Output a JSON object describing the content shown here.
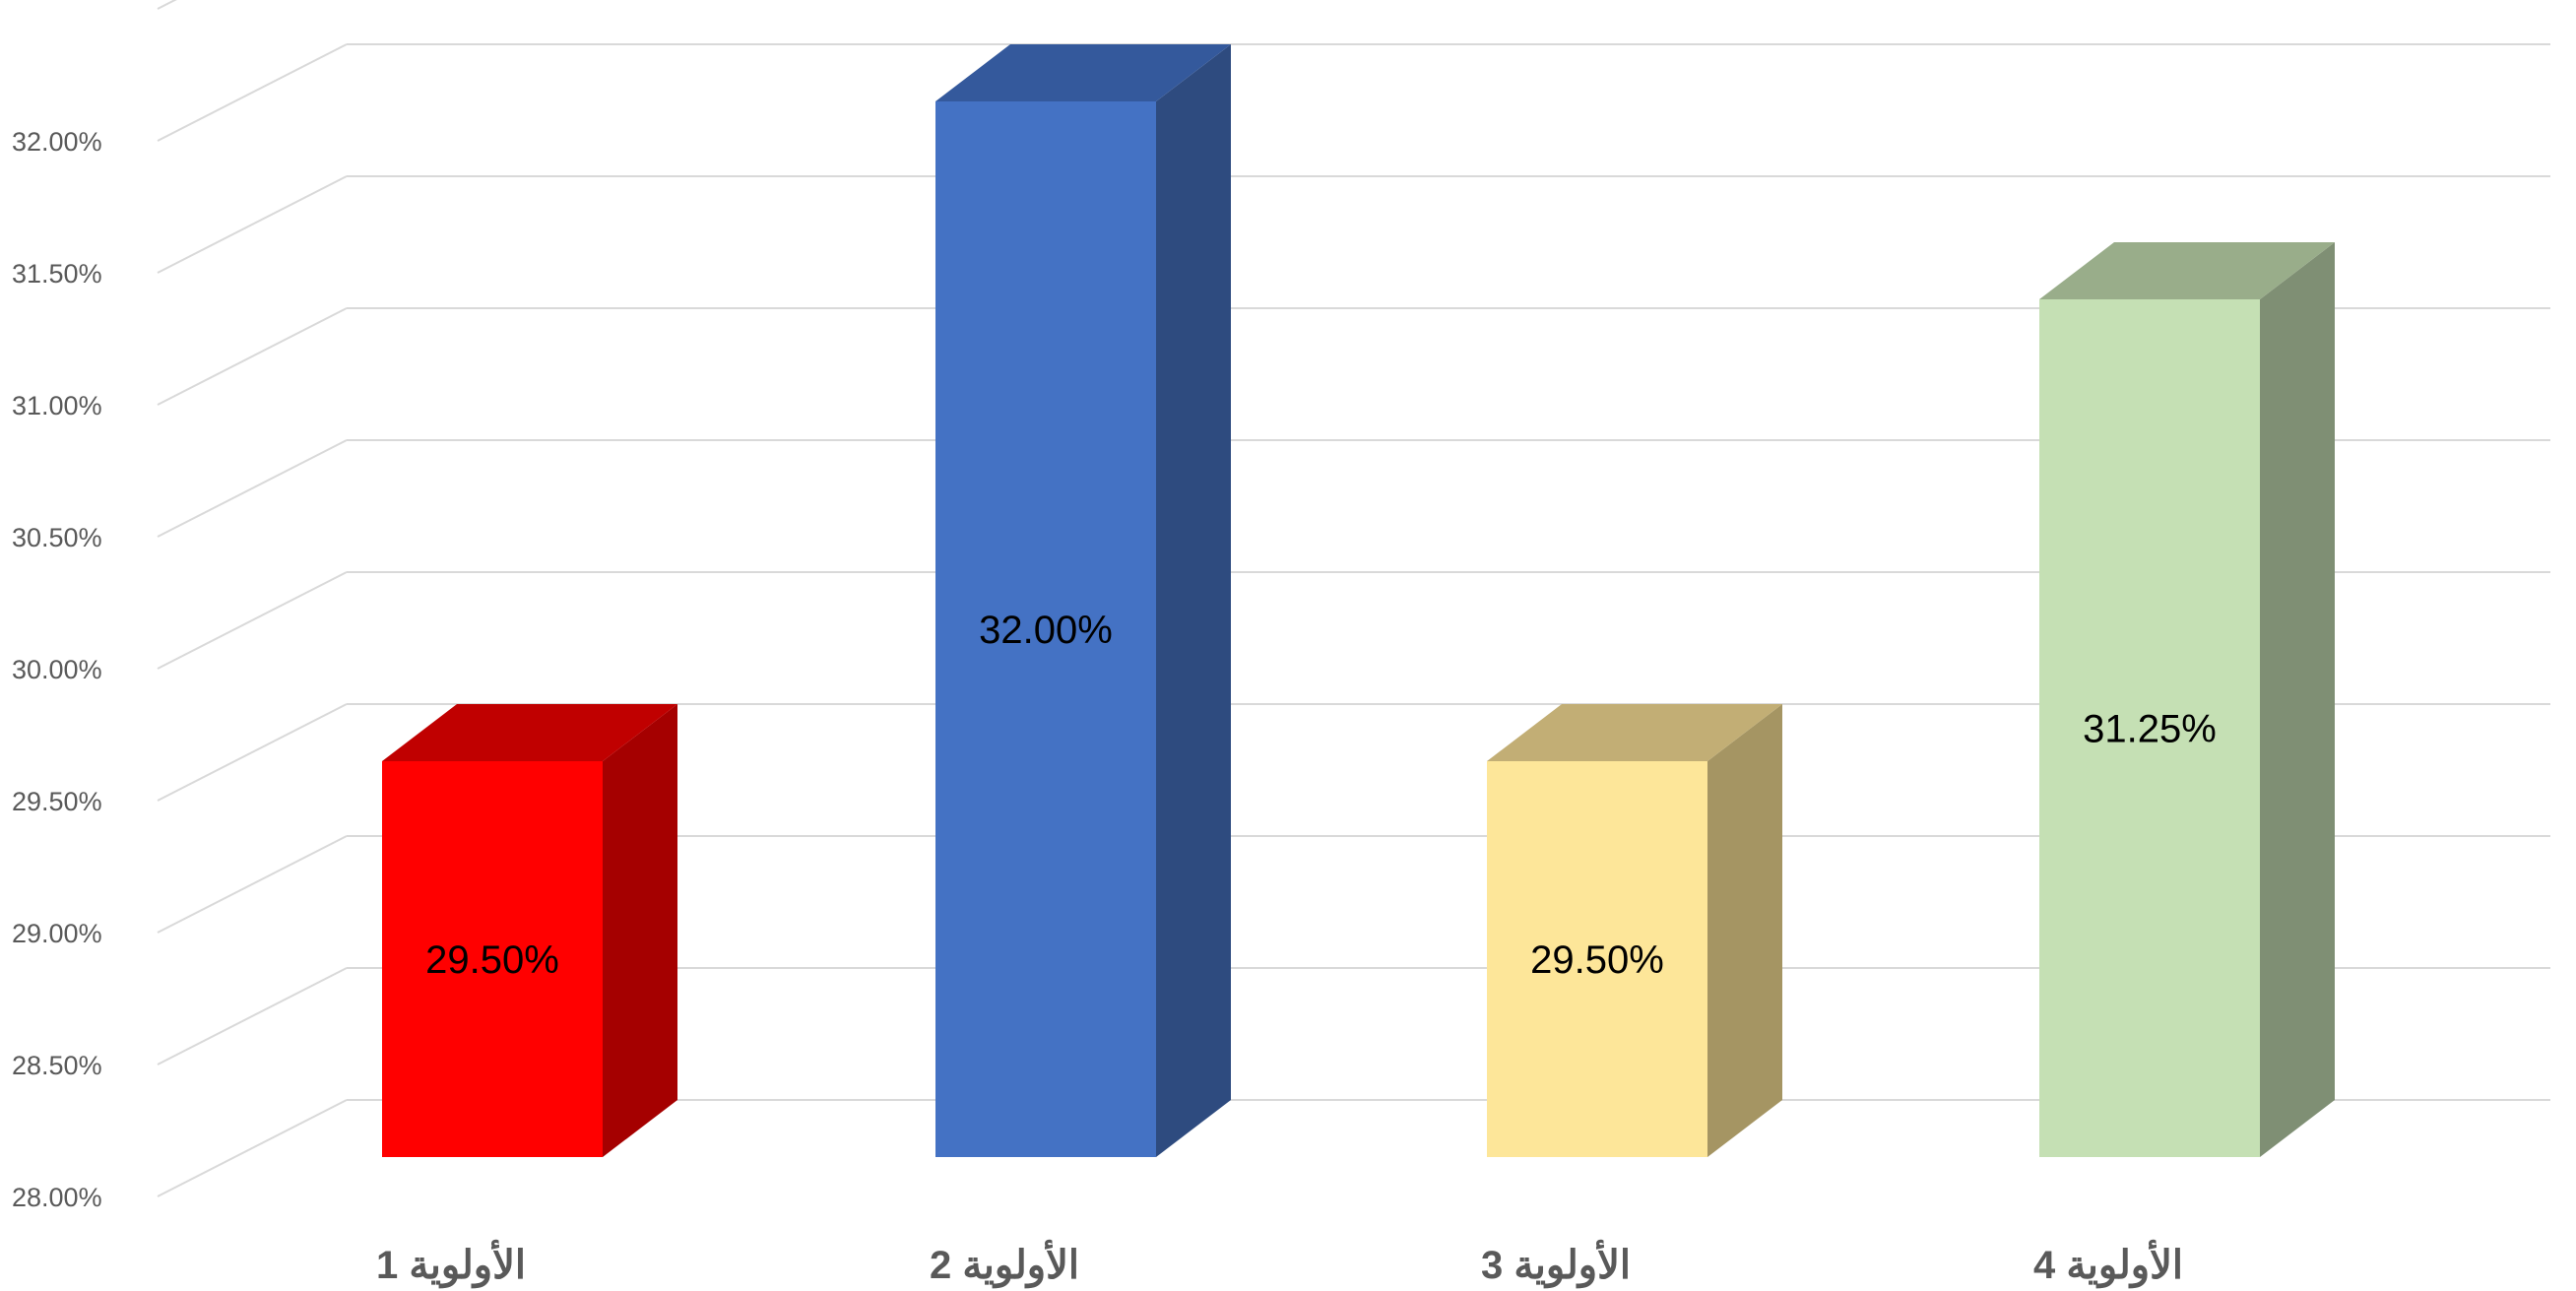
{
  "chart_data": {
    "type": "bar",
    "style": "3d-column",
    "categories": [
      "الأولوية 1",
      "الأولوية 2",
      "الأولوية 3",
      "الأولوية 4"
    ],
    "values": [
      29.5,
      32.0,
      29.5,
      31.25
    ],
    "data_labels": [
      "29.50%",
      "32.00%",
      "29.50%",
      "31.25%"
    ],
    "colors": [
      {
        "front": "#ff0000",
        "side": "#a50000",
        "top": "#c00000"
      },
      {
        "front": "#4472c4",
        "side": "#2e4b7f",
        "top": "#34599c"
      },
      {
        "front": "#fde699",
        "side": "#a59563",
        "top": "#c2ae75"
      },
      {
        "front": "#c5e0b4",
        "side": "#7f8f74",
        "top": "#99ad8a"
      }
    ],
    "ylim": [
      28,
      32.25
    ],
    "yticks": [
      28,
      28.5,
      29,
      29.5,
      30,
      30.5,
      31,
      31.5,
      32
    ],
    "ytick_labels": [
      "28.00%",
      "28.50%",
      "29.00%",
      "29.50%",
      "30.00%",
      "30.50%",
      "31.00%",
      "31.50%",
      "32.00%"
    ],
    "grid": true,
    "title": "",
    "xlabel": "",
    "ylabel": ""
  }
}
